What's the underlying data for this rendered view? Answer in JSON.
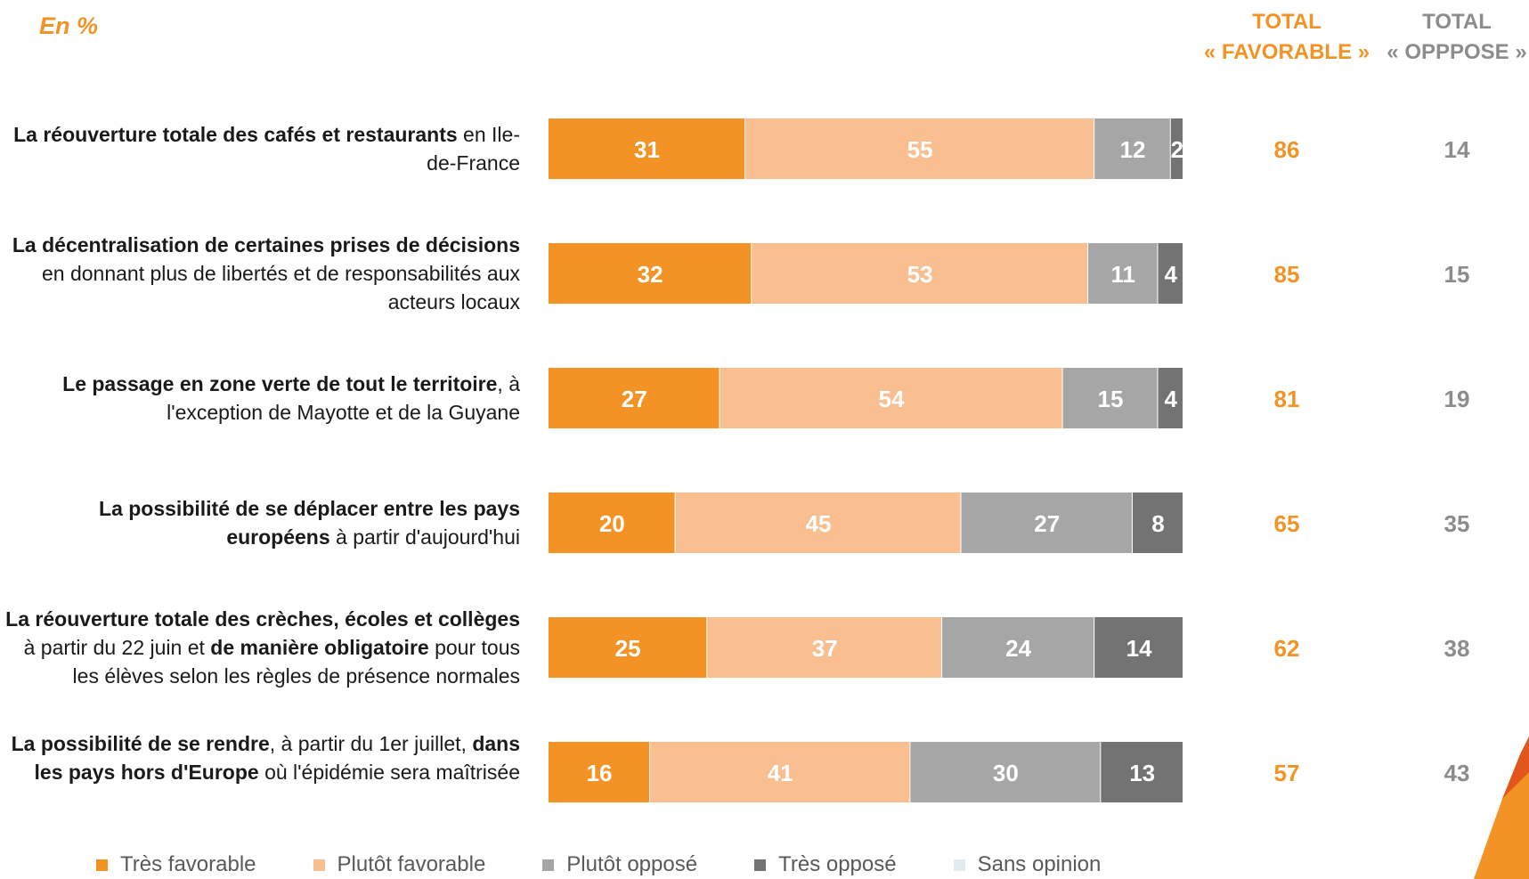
{
  "unit_label": "En  %",
  "headers": {
    "favorable": [
      "TOTAL",
      "« FAVORABLE »"
    ],
    "oppose": [
      "TOTAL",
      "« OPPPOSE »"
    ]
  },
  "colors": {
    "tres_favorable": "#f39325",
    "plutot_favorable": "#f9bf91",
    "plutot_oppose": "#a6a6a6",
    "tres_oppose": "#737373",
    "sans_opinion": "#e4ebf0",
    "total_favorable": "#f39325",
    "total_oppose": "#8c8c8c"
  },
  "rows": [
    {
      "label_bold": "La réouverture totale des cafés et restaurants",
      "label_rest": " en Ile-de-France"
    },
    {
      "label_bold": "La décentralisation de certaines prises de décisions",
      "label_rest": " en donnant plus de libertés et de responsabilités aux acteurs locaux"
    },
    {
      "label_bold": "Le passage en zone verte de tout le territoire",
      "label_rest": ", à l'exception de Mayotte et de la Guyane"
    },
    {
      "label_bold": "La possibilité de se déplacer entre les pays européens",
      "label_rest": " à partir d'aujourd'hui"
    },
    {
      "label_parts": [
        {
          "text": "La réouverture totale des crèches, écoles et collèges",
          "bold": true
        },
        {
          "text": " à partir du 22 juin et ",
          "bold": false
        },
        {
          "text": "de manière obligatoire",
          "bold": true
        },
        {
          "text": " pour tous les élèves selon les règles de présence normales",
          "bold": false
        }
      ]
    },
    {
      "label_parts": [
        {
          "text": "La possibilité de se rendre",
          "bold": true
        },
        {
          "text": ", à partir du 1er juillet, ",
          "bold": false
        },
        {
          "text": "dans les pays hors d'Europe",
          "bold": true
        },
        {
          "text": " où l'épidémie sera maîtrisée",
          "bold": false
        }
      ]
    }
  ],
  "chart_data": {
    "type": "bar",
    "orientation": "horizontal",
    "stacked": true,
    "unit": "%",
    "categories": [
      "La réouverture totale des cafés et restaurants en Ile-de-France",
      "La décentralisation de certaines prises de décisions en donnant plus de libertés et de responsabilités aux acteurs locaux",
      "Le passage en zone verte de tout le territoire, à l'exception de Mayotte et de la Guyane",
      "La possibilité de se déplacer entre les pays européens à partir d'aujourd'hui",
      "La réouverture totale des crèches, écoles et collèges à partir du 22 juin et de manière obligatoire pour tous les élèves selon les règles de présence normales",
      "La possibilité de se rendre, à partir du 1er juillet, dans les pays hors d'Europe où l'épidémie sera maîtrisée"
    ],
    "series": [
      {
        "name": "Très favorable",
        "values": [
          31,
          32,
          27,
          20,
          25,
          16
        ]
      },
      {
        "name": "Plutôt favorable",
        "values": [
          55,
          53,
          54,
          45,
          37,
          41
        ]
      },
      {
        "name": "Plutôt opposé",
        "values": [
          12,
          11,
          15,
          27,
          24,
          30
        ]
      },
      {
        "name": "Très opposé",
        "values": [
          2,
          4,
          4,
          8,
          14,
          13
        ]
      },
      {
        "name": "Sans opinion",
        "values": [
          0,
          0,
          0,
          0,
          0,
          0
        ]
      }
    ],
    "total_favorable": [
      86,
      85,
      81,
      65,
      62,
      57
    ],
    "total_oppose": [
      14,
      15,
      19,
      35,
      38,
      43
    ],
    "xlim": [
      0,
      100
    ],
    "legend_position": "bottom"
  }
}
